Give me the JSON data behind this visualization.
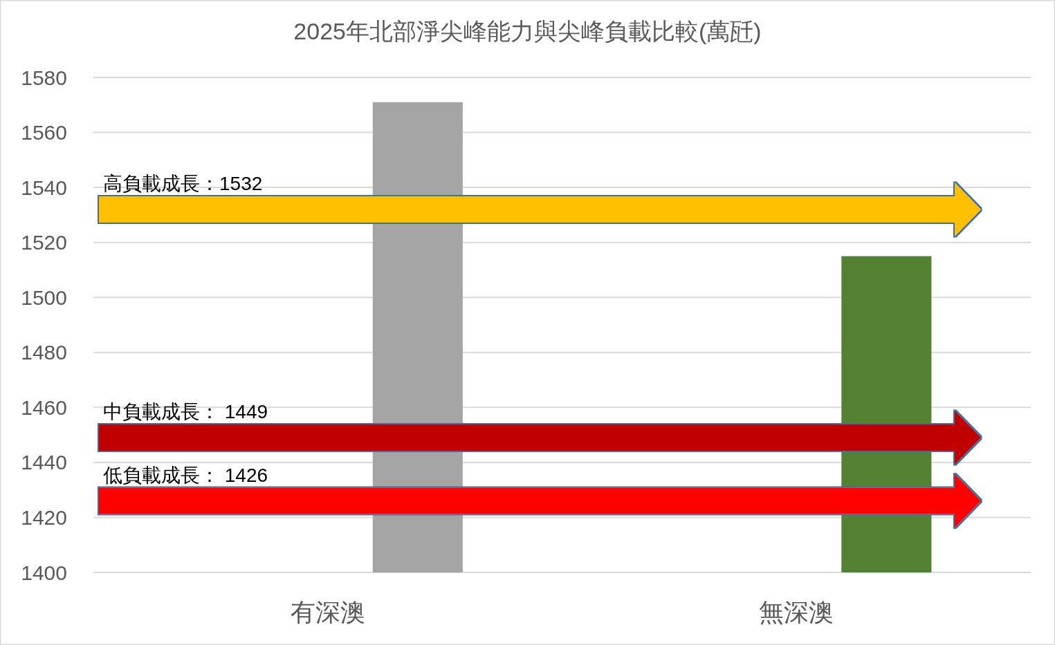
{
  "chart_data": {
    "type": "bar",
    "title": "2025年北部淨尖峰能力與尖峰負載比較(萬瓩)",
    "categories": [
      "有深澳",
      "無深澳"
    ],
    "values": [
      1571,
      1515
    ],
    "colors": [
      "#a5a5a5",
      "#548235"
    ],
    "ylim": [
      1400,
      1580
    ],
    "yticks": [
      1400,
      1420,
      1440,
      1460,
      1480,
      1500,
      1520,
      1540,
      1560,
      1580
    ],
    "grid": "y",
    "ref_lines": [
      {
        "axis": "y",
        "value": 1532,
        "label": "高負載成長：1532",
        "color": "#ffc000"
      },
      {
        "axis": "y",
        "value": 1449,
        "label": "中負載成長： 1449",
        "color": "#c00000"
      },
      {
        "axis": "y",
        "value": 1426,
        "label": "低負載成長： 1426",
        "color": "#ff0000"
      }
    ]
  }
}
